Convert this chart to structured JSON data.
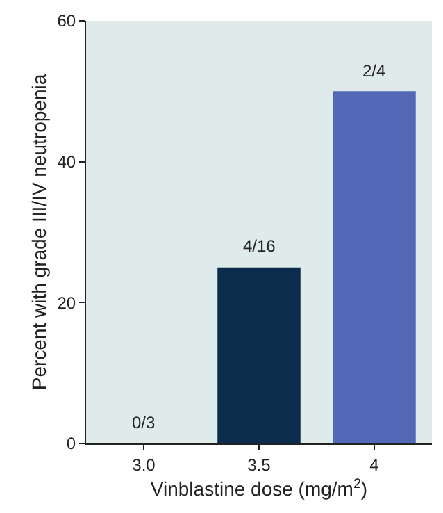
{
  "chart_data": {
    "type": "bar",
    "xlabel": "Vinblastine dose (mg/m$^{2}$)",
    "ylabel": "Percent with grade III/IV neutropenia",
    "categories": [
      "3.0",
      "3.5",
      "4"
    ],
    "values": [
      0,
      25,
      50
    ],
    "colors": [
      "#0b2c4a",
      "#0b2c4a",
      "#5468b8"
    ],
    "annotations": [
      {
        "text": "0/3",
        "x": "3.0",
        "y": 0
      },
      {
        "text": "4/16",
        "x": "3.5",
        "y": 25
      },
      {
        "text": "2/4",
        "x": "4",
        "y": 50
      }
    ],
    "ylim": [
      0,
      60
    ],
    "yticks": [
      0,
      20,
      40,
      60
    ],
    "grid": false,
    "legend": false
  }
}
